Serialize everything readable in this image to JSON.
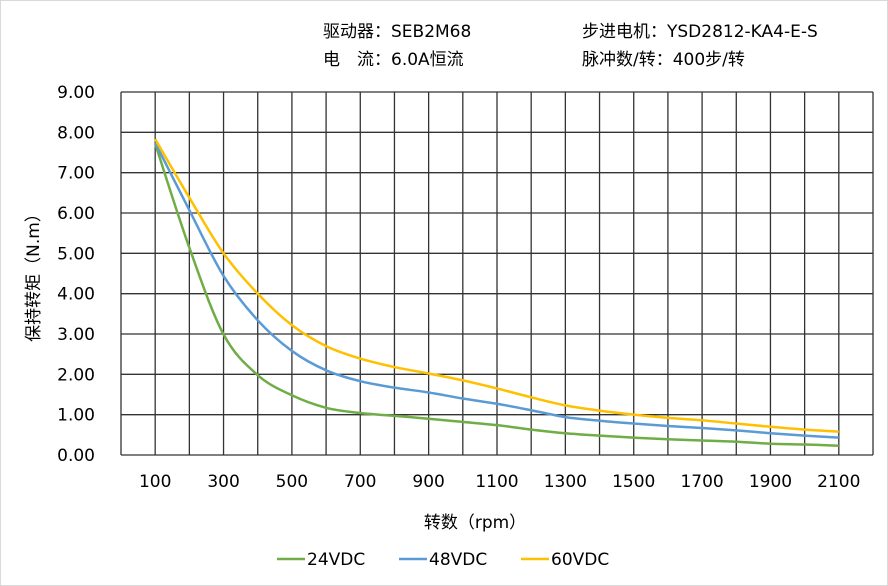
{
  "header": {
    "driver": "驱动器：SEB2M68",
    "motor": "步进电机：YSD2812-KA4-E-S",
    "current": "电　流：6.0A恒流",
    "pulse": "脉冲数/转：400步/转"
  },
  "chart_data": {
    "type": "line",
    "title": "",
    "xlabel": "转数（rpm）",
    "ylabel": "保持转矩（N.m）",
    "xlim": [
      0,
      2200
    ],
    "ylim": [
      0,
      9
    ],
    "grid": true,
    "legend_position": "bottom",
    "x_ticks": [
      100,
      300,
      500,
      700,
      900,
      1100,
      1300,
      1500,
      1700,
      1900,
      2100
    ],
    "y_ticks": [
      "0.00",
      "1.00",
      "2.00",
      "3.00",
      "4.00",
      "5.00",
      "6.00",
      "7.00",
      "8.00",
      "9.00"
    ],
    "x": [
      100,
      200,
      300,
      400,
      500,
      600,
      700,
      800,
      900,
      1000,
      1100,
      1200,
      1300,
      1400,
      1500,
      1600,
      1700,
      1800,
      1900,
      2000,
      2100
    ],
    "series": [
      {
        "name": "24VDC",
        "color": "#70AD47",
        "values": [
          7.72,
          5.14,
          2.99,
          1.98,
          1.48,
          1.17,
          1.04,
          0.97,
          0.9,
          0.82,
          0.74,
          0.63,
          0.54,
          0.48,
          0.43,
          0.39,
          0.36,
          0.33,
          0.28,
          0.26,
          0.23
        ]
      },
      {
        "name": "48VDC",
        "color": "#5B9BD5",
        "values": [
          7.74,
          6.07,
          4.44,
          3.34,
          2.58,
          2.1,
          1.83,
          1.67,
          1.55,
          1.4,
          1.27,
          1.11,
          0.94,
          0.85,
          0.78,
          0.72,
          0.67,
          0.61,
          0.54,
          0.48,
          0.43
        ]
      },
      {
        "name": "60VDC",
        "color": "#FFC000",
        "values": [
          7.83,
          6.38,
          5.0,
          4.0,
          3.22,
          2.7,
          2.39,
          2.18,
          2.02,
          1.85,
          1.65,
          1.43,
          1.23,
          1.1,
          1.0,
          0.92,
          0.86,
          0.78,
          0.7,
          0.63,
          0.58
        ]
      }
    ]
  }
}
